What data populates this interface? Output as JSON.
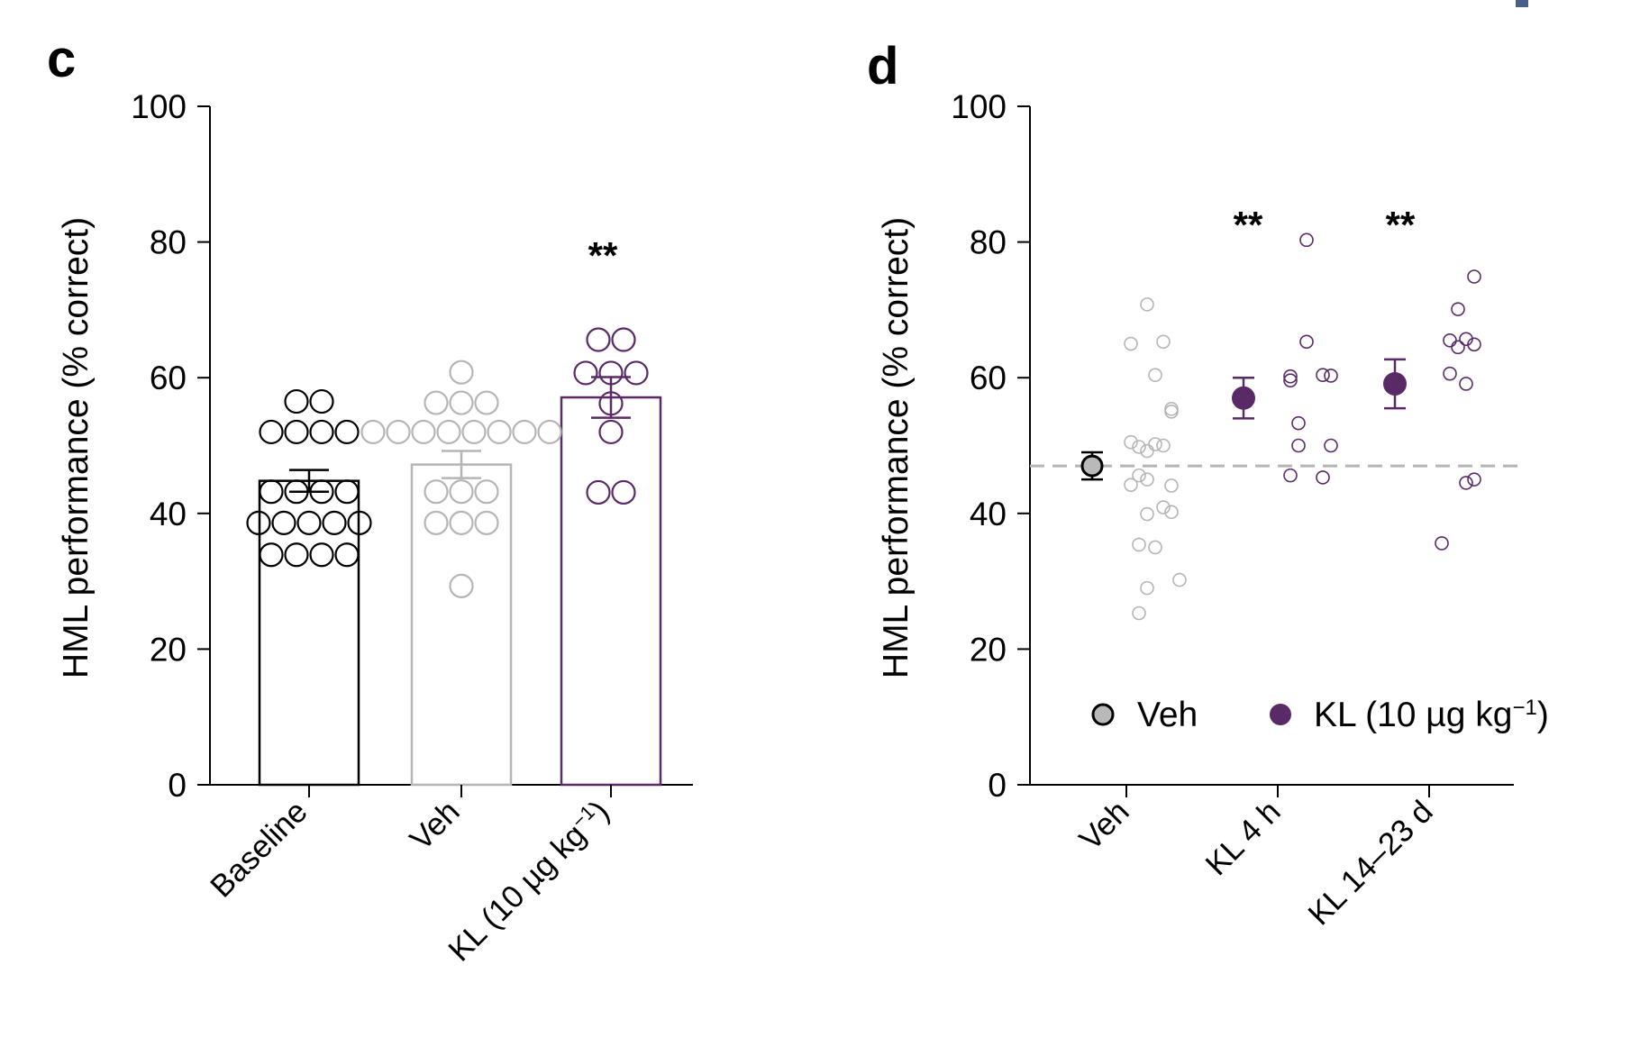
{
  "colors": {
    "axis": "#000000",
    "baseline": "#000000",
    "veh": "#b5b5b5",
    "veh_fill": "#b9b9b9",
    "kl": "#5a2a67",
    "dashed_line": "#b5b5b5"
  },
  "chart_data": [
    {
      "panel_label": "c",
      "type": "bar",
      "ylabel": "HML performance (% correct)",
      "ylim": [
        0,
        100
      ],
      "yticks": [
        "0",
        "20",
        "40",
        "60",
        "80",
        "100"
      ],
      "categories": [
        "Baseline",
        "Veh",
        "KL (10 µg kg"
      ],
      "category_superscript": [
        "",
        "",
        "−1"
      ],
      "category_suffix": [
        "",
        "",
        ")"
      ],
      "means": [
        44.8,
        47.2,
        57.1
      ],
      "sem": [
        1.6,
        2.0,
        3.0
      ],
      "significance": [
        "",
        "",
        "**"
      ],
      "points": [
        [
          56.5,
          56.5,
          52,
          52,
          52,
          52,
          43.2,
          43.2,
          43.2,
          43.2,
          38.6,
          38.6,
          38.6,
          38.6,
          38.6,
          33.9,
          33.9,
          33.9,
          33.9
        ],
        [
          60.8,
          56.3,
          56.3,
          56.3,
          52,
          52,
          52,
          52,
          52,
          52,
          52,
          52,
          43.2,
          43.2,
          43.2,
          38.6,
          38.6,
          38.6,
          29.3
        ],
        [
          65.6,
          65.6,
          60.7,
          60.7,
          60.7,
          56.2,
          52,
          43.1,
          43.1
        ]
      ]
    },
    {
      "panel_label": "d",
      "type": "scatter",
      "ylabel": "HML performance (% correct)",
      "ylim": [
        0,
        100
      ],
      "yticks": [
        "0",
        "20",
        "40",
        "60",
        "80",
        "100"
      ],
      "categories": [
        "Veh",
        "KL 4 h",
        "KL 14–23 d"
      ],
      "reference_line": 47,
      "significance": [
        "",
        "**",
        "**"
      ],
      "means": [
        47,
        57,
        59.1
      ],
      "sem": [
        2.0,
        3.0,
        3.6
      ],
      "points": [
        [
          70.8,
          65.0,
          65.3,
          60.4,
          55.4,
          55.0,
          49.8,
          50.5,
          50.2,
          49.2,
          50.0,
          45.6,
          45.0,
          44.1,
          44.2,
          40.9,
          40.2,
          39.9,
          35.0,
          35.4,
          30.2,
          29.0,
          25.3
        ],
        [
          80.3,
          65.3,
          60.2,
          59.6,
          60.4,
          60.3,
          53.3,
          50.0,
          50.0,
          45.6,
          45.3
        ],
        [
          74.9,
          70.1,
          65.5,
          65.7,
          64.5,
          64.9,
          60.6,
          59.1,
          44.5,
          45.0,
          35.6
        ]
      ],
      "legend": [
        {
          "label": "Veh",
          "superscript": "",
          "suffix": ""
        },
        {
          "label": "KL (10 µg kg",
          "superscript": "−1",
          "suffix": ")"
        }
      ],
      "legend_placement": "bottom-right"
    }
  ]
}
